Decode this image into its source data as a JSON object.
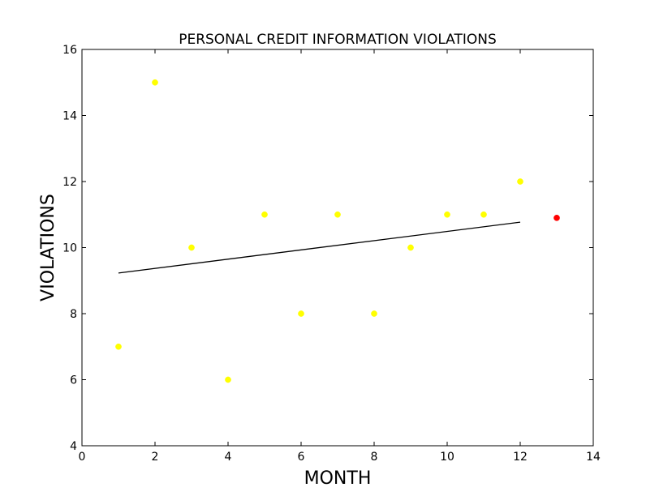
{
  "chart_data": {
    "type": "scatter",
    "title": "PERSONAL CREDIT INFORMATION VIOLATIONS",
    "xlabel": "MONTH",
    "ylabel": "VIOLATIONS",
    "xlim": [
      0,
      14
    ],
    "ylim": [
      4,
      16
    ],
    "xticks": [
      "0",
      "2",
      "4",
      "6",
      "8",
      "10",
      "12",
      "14"
    ],
    "yticks": [
      "4",
      "6",
      "8",
      "10",
      "12",
      "14",
      "16"
    ],
    "grid": false,
    "legend": "none",
    "series": [
      {
        "type": "scatter",
        "color": "#ffff00",
        "points": [
          {
            "x": 1,
            "y": 7
          },
          {
            "x": 2,
            "y": 15
          },
          {
            "x": 3,
            "y": 10
          },
          {
            "x": 4,
            "y": 6
          },
          {
            "x": 5,
            "y": 11
          },
          {
            "x": 6,
            "y": 8
          },
          {
            "x": 7,
            "y": 11
          },
          {
            "x": 8,
            "y": 8
          },
          {
            "x": 9,
            "y": 10
          },
          {
            "x": 10,
            "y": 11
          },
          {
            "x": 11,
            "y": 11
          },
          {
            "x": 12,
            "y": 12
          }
        ]
      },
      {
        "type": "scatter",
        "color": "#ff0000",
        "points": [
          {
            "x": 13,
            "y": 10.9
          }
        ]
      },
      {
        "type": "line",
        "color": "#000000",
        "points": [
          {
            "x": 1,
            "y": 9.23
          },
          {
            "x": 12,
            "y": 10.77
          }
        ]
      }
    ]
  }
}
